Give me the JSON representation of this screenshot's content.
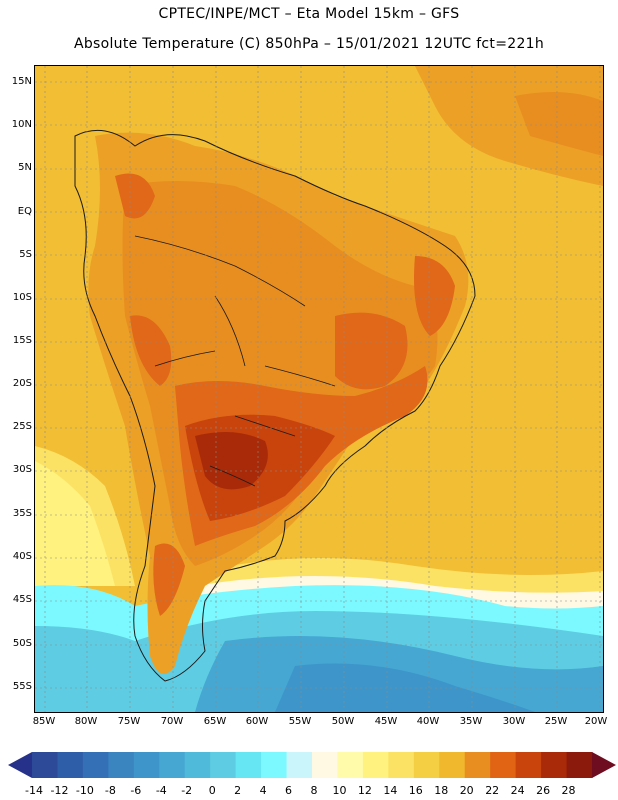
{
  "header": {
    "line1": "CPTEC/INPE/MCT  –   Eta Model 15km  –  GFS",
    "line2": "Absolute Temperature (C) 850hPa – 15/01/2021 12UTC fct=221h"
  },
  "axes": {
    "latitudes": [
      "15N",
      "10N",
      "5N",
      "EQ",
      "5S",
      "10S",
      "15S",
      "20S",
      "25S",
      "30S",
      "35S",
      "40S",
      "45S",
      "50S",
      "55S"
    ],
    "longitudes": [
      "85W",
      "80W",
      "75W",
      "70W",
      "65W",
      "60W",
      "55W",
      "50W",
      "45W",
      "40W",
      "35W",
      "30W",
      "25W",
      "20W"
    ]
  },
  "colorbar": {
    "labels": [
      "-14",
      "-12",
      "-10",
      "-8",
      "-6",
      "-4",
      "-2",
      "0",
      "2",
      "4",
      "6",
      "8",
      "10",
      "12",
      "14",
      "16",
      "18",
      "20",
      "22",
      "24",
      "26",
      "28"
    ],
    "low_end_color": "#26318a",
    "high_end_color": "#6e0c20",
    "colors": [
      "#2c4a98",
      "#2f5ea8",
      "#3370b5",
      "#3a84bf",
      "#3e95c9",
      "#46a7d3",
      "#4fbad9",
      "#5ecde3",
      "#66e6f2",
      "#7cf9ff",
      "#c9f5fb",
      "#fff8e2",
      "#fffbaa",
      "#fff27e",
      "#fbe264",
      "#f4cf44",
      "#f0b82c",
      "#e88e20",
      "#e06414",
      "#c8440c",
      "#a82a08",
      "#8c1a0c"
    ]
  },
  "colors": {
    "ocean_warm": "#f1be34",
    "land_hot": "#e06818",
    "land_very_hot": "#b63c0c",
    "south_cold": "#5ec8e0",
    "deep_cold": "#3e9ecb"
  }
}
